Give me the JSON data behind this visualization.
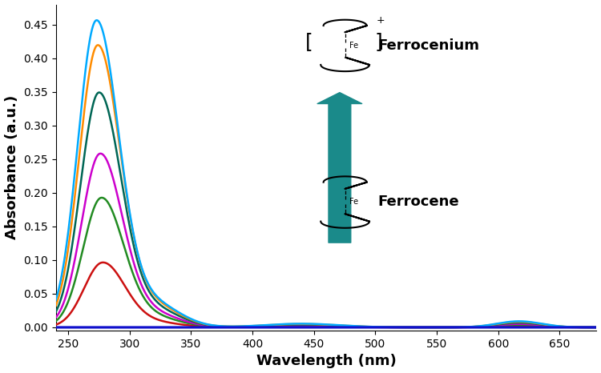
{
  "xlabel": "Wavelength (nm)",
  "ylabel": "Absorbance (a.u.)",
  "xlim": [
    240,
    680
  ],
  "ylim": [
    -0.005,
    0.48
  ],
  "yticks": [
    0.0,
    0.05,
    0.1,
    0.15,
    0.2,
    0.25,
    0.3,
    0.35,
    0.4,
    0.45
  ],
  "xticks": [
    250,
    300,
    350,
    400,
    450,
    500,
    550,
    600,
    650
  ],
  "curves": [
    {
      "color": "#1010CC",
      "peak": 0.0,
      "peak_wl": 280
    },
    {
      "color": "#CC1010",
      "peak": 0.095,
      "peak_wl": 278
    },
    {
      "color": "#228B22",
      "peak": 0.19,
      "peak_wl": 277
    },
    {
      "color": "#CC00CC",
      "peak": 0.255,
      "peak_wl": 276
    },
    {
      "color": "#006655",
      "peak": 0.345,
      "peak_wl": 275
    },
    {
      "color": "#FF8C00",
      "peak": 0.415,
      "peak_wl": 274
    },
    {
      "color": "#00AAFF",
      "peak": 0.452,
      "peak_wl": 273
    }
  ],
  "arrow_color": "#1A8A8A",
  "label_ferrocenium": "Ferrocenium",
  "label_ferrocene": "Ferrocene",
  "font_size_axis": 13,
  "font_size_ticks": 10,
  "lw": 1.8
}
